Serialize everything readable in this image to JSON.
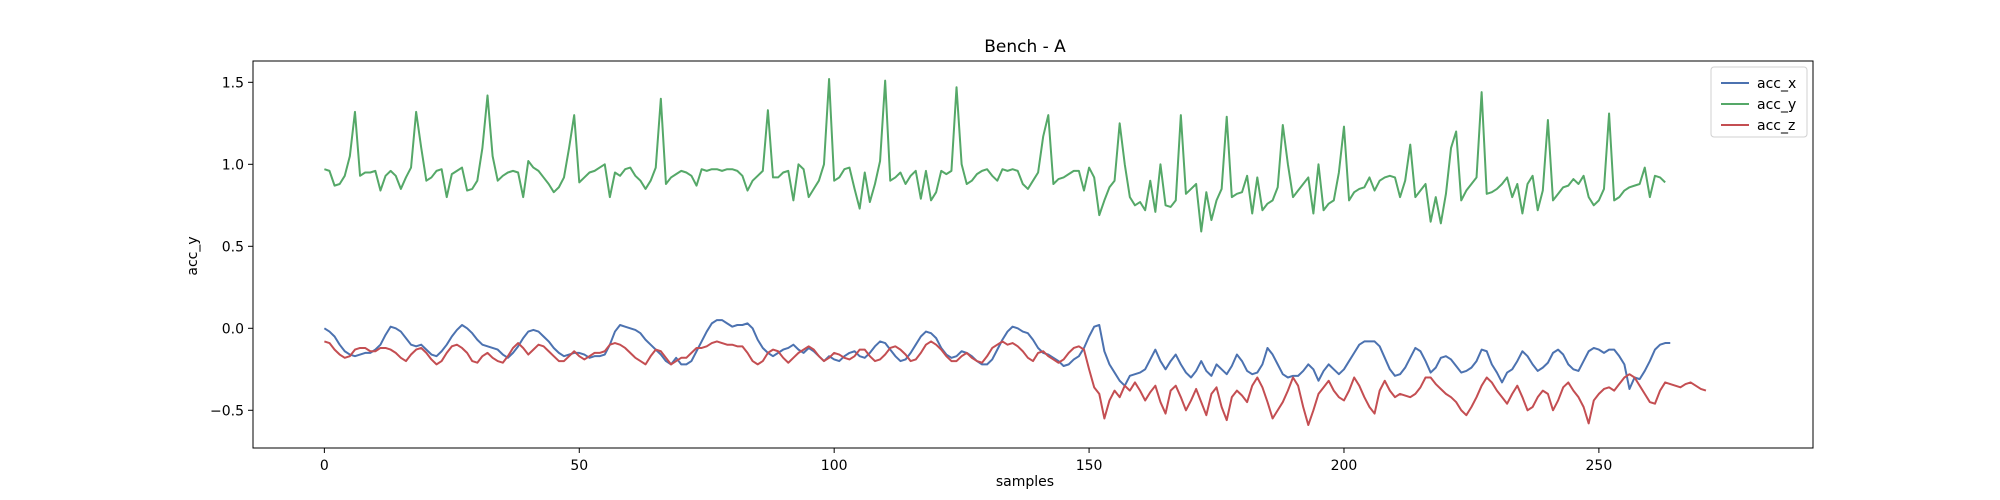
{
  "chart_data": {
    "type": "line",
    "title": "Bench - A",
    "xlabel": "samples",
    "ylabel": "acc_y",
    "xlim": [
      -14,
      292
    ],
    "ylim": [
      -0.73,
      1.63
    ],
    "xticks": [
      0,
      50,
      100,
      150,
      200,
      250
    ],
    "yticks": [
      -0.5,
      0.0,
      0.5,
      1.0,
      1.5
    ],
    "ytick_labels": [
      "−0.5",
      "0.0",
      "0.5",
      "1.0",
      "1.5"
    ],
    "grid": false,
    "legend_position": "top-right",
    "series": [
      {
        "name": "acc_x",
        "color": "#4c72b0",
        "sample_step": 1,
        "values": [
          0.0,
          -0.02,
          -0.05,
          -0.1,
          -0.14,
          -0.16,
          -0.17,
          -0.16,
          -0.15,
          -0.15,
          -0.13,
          -0.1,
          -0.04,
          0.01,
          0.0,
          -0.02,
          -0.06,
          -0.1,
          -0.11,
          -0.1,
          -0.13,
          -0.16,
          -0.17,
          -0.14,
          -0.1,
          -0.05,
          -0.01,
          0.02,
          0.0,
          -0.03,
          -0.07,
          -0.1,
          -0.11,
          -0.12,
          -0.13,
          -0.16,
          -0.18,
          -0.15,
          -0.11,
          -0.06,
          -0.02,
          -0.01,
          -0.02,
          -0.05,
          -0.08,
          -0.12,
          -0.15,
          -0.17,
          -0.16,
          -0.15,
          -0.15,
          -0.16,
          -0.18,
          -0.17,
          -0.17,
          -0.16,
          -0.1,
          -0.02,
          0.02,
          0.01,
          0.0,
          -0.01,
          -0.03,
          -0.07,
          -0.1,
          -0.13,
          -0.16,
          -0.2,
          -0.22,
          -0.18,
          -0.22,
          -0.22,
          -0.2,
          -0.14,
          -0.08,
          -0.02,
          0.03,
          0.05,
          0.05,
          0.03,
          0.01,
          0.02,
          0.02,
          0.03,
          0.0,
          -0.07,
          -0.12,
          -0.15,
          -0.17,
          -0.15,
          -0.13,
          -0.12,
          -0.1,
          -0.13,
          -0.15,
          -0.12,
          -0.14,
          -0.17,
          -0.2,
          -0.17,
          -0.19,
          -0.2,
          -0.17,
          -0.15,
          -0.14,
          -0.17,
          -0.18,
          -0.15,
          -0.11,
          -0.08,
          -0.09,
          -0.13,
          -0.17,
          -0.2,
          -0.19,
          -0.15,
          -0.1,
          -0.05,
          -0.02,
          -0.03,
          -0.06,
          -0.12,
          -0.16,
          -0.18,
          -0.17,
          -0.14,
          -0.15,
          -0.17,
          -0.2,
          -0.22,
          -0.22,
          -0.19,
          -0.13,
          -0.07,
          -0.02,
          0.01,
          0.0,
          -0.02,
          -0.03,
          -0.07,
          -0.12,
          -0.15,
          -0.16,
          -0.18,
          -0.2,
          -0.23,
          -0.22,
          -0.19,
          -0.17,
          -0.12,
          -0.05,
          0.01,
          0.02,
          -0.14,
          -0.22,
          -0.27,
          -0.32,
          -0.35,
          -0.29,
          -0.28,
          -0.27,
          -0.25,
          -0.19,
          -0.13,
          -0.2,
          -0.25,
          -0.2,
          -0.16,
          -0.22,
          -0.27,
          -0.3,
          -0.26,
          -0.2,
          -0.26,
          -0.29,
          -0.22,
          -0.25,
          -0.28,
          -0.23,
          -0.16,
          -0.2,
          -0.26,
          -0.28,
          -0.27,
          -0.22,
          -0.12,
          -0.16,
          -0.22,
          -0.28,
          -0.3,
          -0.29,
          -0.29,
          -0.26,
          -0.22,
          -0.25,
          -0.32,
          -0.26,
          -0.22,
          -0.25,
          -0.28,
          -0.25,
          -0.2,
          -0.15,
          -0.1,
          -0.08,
          -0.08,
          -0.08,
          -0.11,
          -0.18,
          -0.25,
          -0.29,
          -0.28,
          -0.24,
          -0.18,
          -0.12,
          -0.14,
          -0.2,
          -0.27,
          -0.24,
          -0.18,
          -0.17,
          -0.19,
          -0.23,
          -0.27,
          -0.26,
          -0.24,
          -0.2,
          -0.13,
          -0.14,
          -0.22,
          -0.27,
          -0.33,
          -0.27,
          -0.25,
          -0.2,
          -0.14,
          -0.17,
          -0.22,
          -0.26,
          -0.24,
          -0.21,
          -0.15,
          -0.13,
          -0.16,
          -0.22,
          -0.25,
          -0.26,
          -0.2,
          -0.14,
          -0.12,
          -0.13,
          -0.15,
          -0.13,
          -0.13,
          -0.17,
          -0.22,
          -0.37,
          -0.3,
          -0.31,
          -0.26,
          -0.2,
          -0.13,
          -0.1,
          -0.09,
          -0.09
        ]
      },
      {
        "name": "acc_y",
        "color": "#55a868",
        "sample_step": 1,
        "values": [
          0.97,
          0.96,
          0.87,
          0.88,
          0.93,
          1.05,
          1.32,
          0.93,
          0.95,
          0.95,
          0.96,
          0.84,
          0.93,
          0.96,
          0.93,
          0.85,
          0.92,
          0.98,
          1.32,
          1.1,
          0.9,
          0.92,
          0.96,
          0.97,
          0.8,
          0.94,
          0.96,
          0.98,
          0.84,
          0.85,
          0.9,
          1.1,
          1.42,
          1.05,
          0.9,
          0.93,
          0.95,
          0.96,
          0.95,
          0.8,
          1.02,
          0.98,
          0.96,
          0.92,
          0.88,
          0.83,
          0.86,
          0.92,
          1.1,
          1.3,
          0.89,
          0.92,
          0.95,
          0.96,
          0.98,
          1.0,
          0.8,
          0.95,
          0.93,
          0.97,
          0.98,
          0.93,
          0.9,
          0.85,
          0.9,
          0.98,
          1.4,
          0.88,
          0.92,
          0.94,
          0.96,
          0.95,
          0.93,
          0.87,
          0.97,
          0.96,
          0.97,
          0.97,
          0.96,
          0.97,
          0.97,
          0.96,
          0.93,
          0.84,
          0.9,
          0.93,
          0.96,
          1.33,
          0.92,
          0.92,
          0.95,
          0.96,
          0.78,
          1.0,
          0.97,
          0.8,
          0.85,
          0.9,
          1.0,
          1.52,
          0.9,
          0.92,
          0.97,
          0.98,
          0.85,
          0.73,
          0.95,
          0.77,
          0.88,
          1.02,
          1.51,
          0.9,
          0.92,
          0.95,
          0.88,
          0.93,
          0.96,
          0.79,
          0.96,
          0.78,
          0.83,
          0.96,
          0.94,
          0.96,
          1.47,
          1.0,
          0.88,
          0.9,
          0.94,
          0.96,
          0.97,
          0.93,
          0.9,
          0.97,
          0.96,
          0.97,
          0.96,
          0.88,
          0.85,
          0.9,
          0.95,
          1.17,
          1.3,
          0.88,
          0.91,
          0.92,
          0.94,
          0.96,
          0.96,
          0.84,
          0.98,
          0.92,
          0.69,
          0.78,
          0.86,
          0.9,
          1.25,
          1.0,
          0.8,
          0.75,
          0.77,
          0.72,
          0.9,
          0.71,
          1.0,
          0.75,
          0.74,
          0.78,
          1.3,
          0.82,
          0.85,
          0.88,
          0.59,
          0.83,
          0.66,
          0.78,
          0.85,
          1.29,
          0.8,
          0.82,
          0.83,
          0.93,
          0.7,
          0.92,
          0.72,
          0.76,
          0.78,
          0.86,
          1.24,
          1.0,
          0.8,
          0.84,
          0.88,
          0.92,
          0.7,
          1.0,
          0.72,
          0.76,
          0.78,
          0.95,
          1.23,
          0.78,
          0.83,
          0.85,
          0.86,
          0.92,
          0.84,
          0.9,
          0.92,
          0.93,
          0.92,
          0.8,
          0.9,
          1.12,
          0.8,
          0.84,
          0.88,
          0.65,
          0.8,
          0.64,
          0.82,
          1.1,
          1.2,
          0.78,
          0.84,
          0.88,
          0.92,
          1.44,
          0.82,
          0.83,
          0.85,
          0.88,
          0.92,
          0.8,
          0.88,
          0.7,
          0.88,
          0.93,
          0.72,
          0.84,
          1.27,
          0.78,
          0.82,
          0.86,
          0.87,
          0.91,
          0.88,
          0.93,
          0.8,
          0.75,
          0.78,
          0.85,
          1.31,
          0.78,
          0.8,
          0.84,
          0.86,
          0.87,
          0.88,
          0.98,
          0.8,
          0.93,
          0.92,
          0.89
        ]
      },
      {
        "name": "acc_z",
        "color": "#c44e52",
        "sample_step": 1,
        "values": [
          -0.08,
          -0.09,
          -0.13,
          -0.16,
          -0.18,
          -0.17,
          -0.13,
          -0.12,
          -0.12,
          -0.14,
          -0.14,
          -0.12,
          -0.12,
          -0.13,
          -0.15,
          -0.18,
          -0.2,
          -0.16,
          -0.13,
          -0.12,
          -0.15,
          -0.19,
          -0.22,
          -0.2,
          -0.15,
          -0.11,
          -0.1,
          -0.12,
          -0.15,
          -0.2,
          -0.21,
          -0.17,
          -0.15,
          -0.18,
          -0.2,
          -0.21,
          -0.17,
          -0.12,
          -0.09,
          -0.12,
          -0.16,
          -0.13,
          -0.1,
          -0.11,
          -0.14,
          -0.17,
          -0.2,
          -0.2,
          -0.17,
          -0.14,
          -0.17,
          -0.19,
          -0.17,
          -0.15,
          -0.15,
          -0.14,
          -0.1,
          -0.09,
          -0.1,
          -0.12,
          -0.15,
          -0.18,
          -0.2,
          -0.22,
          -0.17,
          -0.13,
          -0.14,
          -0.18,
          -0.22,
          -0.2,
          -0.18,
          -0.18,
          -0.15,
          -0.12,
          -0.12,
          -0.11,
          -0.09,
          -0.08,
          -0.09,
          -0.1,
          -0.1,
          -0.11,
          -0.11,
          -0.15,
          -0.2,
          -0.22,
          -0.2,
          -0.15,
          -0.13,
          -0.14,
          -0.18,
          -0.21,
          -0.18,
          -0.15,
          -0.13,
          -0.11,
          -0.13,
          -0.17,
          -0.2,
          -0.18,
          -0.15,
          -0.16,
          -0.18,
          -0.19,
          -0.17,
          -0.13,
          -0.13,
          -0.17,
          -0.2,
          -0.19,
          -0.16,
          -0.12,
          -0.11,
          -0.13,
          -0.16,
          -0.2,
          -0.19,
          -0.15,
          -0.1,
          -0.08,
          -0.1,
          -0.13,
          -0.17,
          -0.2,
          -0.2,
          -0.17,
          -0.15,
          -0.18,
          -0.2,
          -0.21,
          -0.17,
          -0.12,
          -0.1,
          -0.08,
          -0.1,
          -0.09,
          -0.11,
          -0.14,
          -0.18,
          -0.2,
          -0.15,
          -0.14,
          -0.17,
          -0.19,
          -0.21,
          -0.19,
          -0.15,
          -0.12,
          -0.11,
          -0.13,
          -0.25,
          -0.36,
          -0.4,
          -0.55,
          -0.44,
          -0.38,
          -0.42,
          -0.35,
          -0.38,
          -0.33,
          -0.38,
          -0.44,
          -0.39,
          -0.35,
          -0.45,
          -0.52,
          -0.38,
          -0.35,
          -0.42,
          -0.5,
          -0.44,
          -0.37,
          -0.45,
          -0.53,
          -0.4,
          -0.36,
          -0.48,
          -0.56,
          -0.42,
          -0.38,
          -0.41,
          -0.45,
          -0.35,
          -0.3,
          -0.36,
          -0.45,
          -0.55,
          -0.5,
          -0.45,
          -0.38,
          -0.3,
          -0.35,
          -0.48,
          -0.59,
          -0.5,
          -0.4,
          -0.36,
          -0.32,
          -0.38,
          -0.42,
          -0.44,
          -0.38,
          -0.3,
          -0.35,
          -0.42,
          -0.48,
          -0.52,
          -0.38,
          -0.32,
          -0.38,
          -0.42,
          -0.4,
          -0.41,
          -0.42,
          -0.4,
          -0.36,
          -0.3,
          -0.3,
          -0.34,
          -0.37,
          -0.4,
          -0.42,
          -0.45,
          -0.5,
          -0.53,
          -0.48,
          -0.42,
          -0.35,
          -0.3,
          -0.33,
          -0.38,
          -0.42,
          -0.46,
          -0.4,
          -0.35,
          -0.42,
          -0.5,
          -0.48,
          -0.42,
          -0.38,
          -0.4,
          -0.5,
          -0.44,
          -0.36,
          -0.33,
          -0.38,
          -0.42,
          -0.48,
          -0.58,
          -0.44,
          -0.4,
          -0.37,
          -0.36,
          -0.38,
          -0.34,
          -0.3,
          -0.28,
          -0.3,
          -0.35,
          -0.4,
          -0.45,
          -0.46,
          -0.38,
          -0.33,
          -0.34,
          -0.35,
          -0.36,
          -0.34,
          -0.33,
          -0.35,
          -0.37,
          -0.38
        ]
      }
    ]
  }
}
